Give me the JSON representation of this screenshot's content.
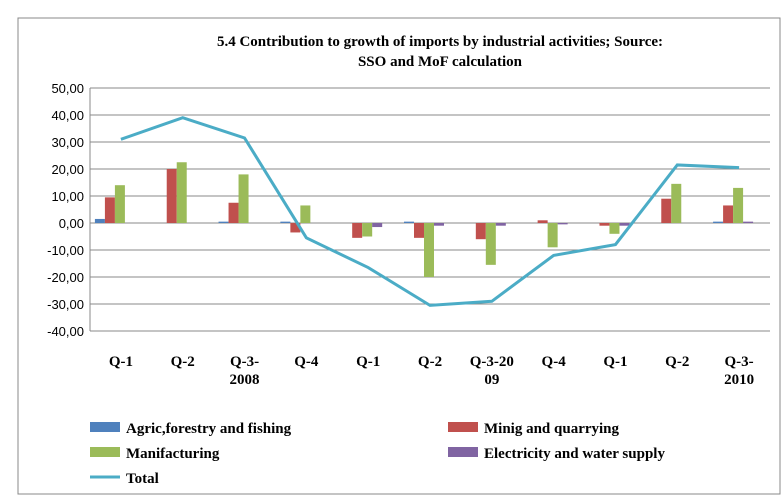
{
  "chart_data": {
    "type": "bar_line",
    "title": "5.4 Contribution to growth of imports by industrial activities; Source: SSO and MoF calculation",
    "categories": [
      "Q-1",
      "Q-2",
      "Q-3-\n2008",
      "Q-4",
      "Q-1",
      "Q-2",
      "Q-3-20\n09",
      "Q-4",
      "Q-1",
      "Q-2",
      "Q-3-\n2010"
    ],
    "series": [
      {
        "name": "Agric,forestry and fishing",
        "color": "#4f81bd",
        "kind": "bar",
        "values": [
          1.5,
          0,
          0.5,
          0.5,
          0,
          0.5,
          0,
          0,
          0,
          0,
          0.5
        ]
      },
      {
        "name": "Minig and quarrying",
        "color": "#c0504d",
        "kind": "bar",
        "values": [
          9.5,
          20,
          7.5,
          -3.5,
          -5.5,
          -5.5,
          -6,
          1,
          -1,
          9,
          6.5
        ]
      },
      {
        "name": "Manifacturing",
        "color": "#9bbb59",
        "kind": "bar",
        "values": [
          14,
          22.5,
          18,
          6.5,
          -5,
          -20,
          -15.5,
          -9,
          -4,
          14.5,
          13
        ]
      },
      {
        "name": "Electricity and water supply",
        "color": "#8064a2",
        "kind": "bar",
        "values": [
          0,
          0,
          0,
          0,
          -1.5,
          -1,
          -1,
          -0.5,
          -1,
          0,
          0.5
        ]
      },
      {
        "name": "Total",
        "color": "#4bacc6",
        "kind": "line",
        "values": [
          31,
          39,
          31.5,
          -5.5,
          -16.5,
          -30.5,
          -29,
          -12,
          -8,
          21.5,
          20.5
        ]
      }
    ],
    "ylim": [
      -40,
      50
    ],
    "yticks": [
      {
        "value": -40,
        "label": "-40,00"
      },
      {
        "value": -30,
        "label": "-30,00"
      },
      {
        "value": -20,
        "label": "-20,00"
      },
      {
        "value": -10,
        "label": "-10,00"
      },
      {
        "value": 0,
        "label": "0,00"
      },
      {
        "value": 10,
        "label": "10,00"
      },
      {
        "value": 20,
        "label": "20,00"
      },
      {
        "value": 30,
        "label": "30,00"
      },
      {
        "value": 40,
        "label": "40,00"
      },
      {
        "value": 50,
        "label": "50,00"
      }
    ]
  }
}
